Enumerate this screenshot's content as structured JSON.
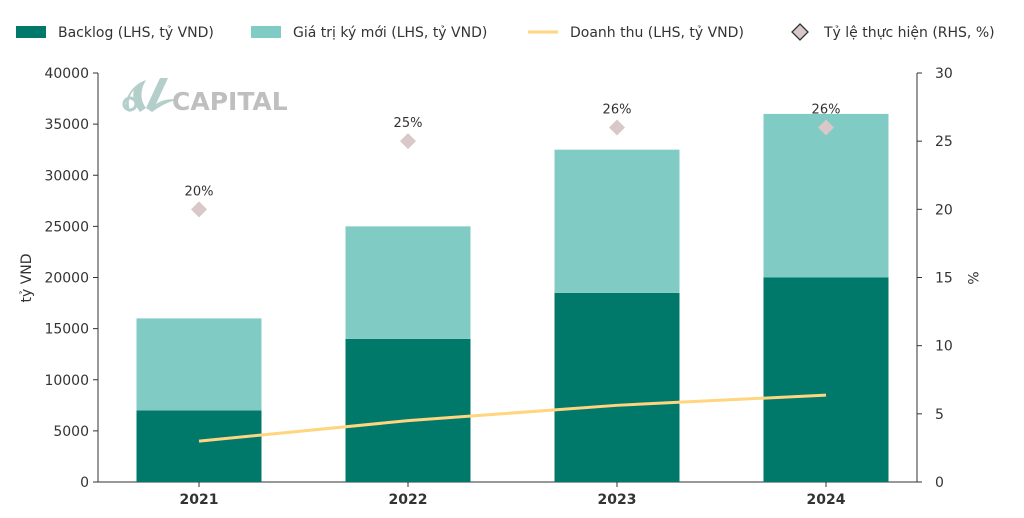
{
  "watermark": {
    "text": "CAPITAL"
  },
  "colors": {
    "backlog": "#00796b",
    "new": "#80cbc4",
    "revenue": "#ffd580",
    "rate": "#d9c8c8",
    "axis": "#333333"
  },
  "chart_data": {
    "type": "bar",
    "categories": [
      "2021",
      "2022",
      "2023",
      "2024"
    ],
    "series": [
      {
        "name": "Backlog (LHS, tỷ VND)",
        "type": "bar",
        "axis": "left",
        "values": [
          7000,
          14000,
          18500,
          20000
        ]
      },
      {
        "name": "Giá trị ký mới (LHS, tỷ VND)",
        "type": "bar",
        "axis": "left",
        "stacked": true,
        "values": [
          9000,
          11000,
          14000,
          16000
        ]
      },
      {
        "name": "Doanh thu (LHS, tỷ VND)",
        "type": "line",
        "axis": "left",
        "values": [
          4000,
          6000,
          7500,
          8500
        ]
      },
      {
        "name": "Tỷ lệ thực hiện (RHS, %)",
        "type": "scatter",
        "axis": "right",
        "values": [
          20,
          25,
          26,
          26
        ],
        "labels": [
          "20%",
          "25%",
          "26%",
          "26%"
        ]
      }
    ],
    "ylabel": "tỷ VND",
    "ylabel_right": "%",
    "ylim": [
      0,
      40000
    ],
    "yticks": [
      0,
      5000,
      10000,
      15000,
      20000,
      25000,
      30000,
      35000,
      40000
    ],
    "ylim_right": [
      0,
      30
    ],
    "yticks_right": [
      0,
      5,
      10,
      15,
      20,
      25,
      30
    ],
    "legend_position": "top",
    "grid": false
  }
}
